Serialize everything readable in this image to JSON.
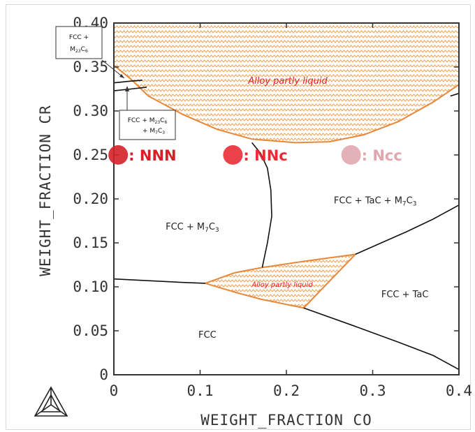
{
  "chart_data": {
    "type": "phase-diagram",
    "xlabel": "WEIGHT_FRACTION CO",
    "ylabel": "WEIGHT_FRACTION CR",
    "xlim": [
      0,
      0.4
    ],
    "ylim": [
      0,
      0.4
    ],
    "x_ticks": [
      "0",
      "0.1",
      "0.2",
      "0.3",
      "0.4"
    ],
    "y_ticks": [
      "0",
      "0.05",
      "0.10",
      "0.15",
      "0.20",
      "0.25",
      "0.30",
      "0.35",
      "0.40"
    ],
    "boundaries": [
      {
        "name": "fcc-fcc-m7c3",
        "points": [
          [
            0.0,
            0.109
          ],
          [
            0.04,
            0.107
          ],
          [
            0.08,
            0.105
          ],
          [
            0.106,
            0.104
          ]
        ]
      },
      {
        "name": "fcc-fcc-tac",
        "points": [
          [
            0.22,
            0.076
          ],
          [
            0.28,
            0.055
          ],
          [
            0.33,
            0.037
          ],
          [
            0.37,
            0.022
          ],
          [
            0.4,
            0.006
          ]
        ]
      },
      {
        "name": "fcc-tac-upper",
        "points": [
          [
            0.28,
            0.137
          ],
          [
            0.31,
            0.15
          ],
          [
            0.34,
            0.163
          ],
          [
            0.37,
            0.177
          ],
          [
            0.4,
            0.193
          ]
        ]
      },
      {
        "name": "m7c3-tac-vertical",
        "points": [
          [
            0.172,
            0.122
          ],
          [
            0.178,
            0.15
          ],
          [
            0.183,
            0.18
          ],
          [
            0.182,
            0.21
          ],
          [
            0.178,
            0.235
          ],
          [
            0.17,
            0.252
          ],
          [
            0.16,
            0.264
          ]
        ]
      },
      {
        "name": "m23c6-line-1",
        "points": [
          [
            0.0,
            0.332
          ],
          [
            0.02,
            0.334
          ],
          [
            0.033,
            0.335
          ]
        ]
      },
      {
        "name": "m23c6-line-2",
        "points": [
          [
            0.0,
            0.323
          ],
          [
            0.02,
            0.325
          ],
          [
            0.038,
            0.327
          ]
        ]
      },
      {
        "name": "right-edge-line",
        "points": [
          [
            0.39,
            0.317
          ],
          [
            0.4,
            0.32
          ]
        ]
      }
    ],
    "liquid_regions": [
      {
        "label": "Alloy partly liquid",
        "points": [
          [
            0.0,
            0.4
          ],
          [
            0.4,
            0.4
          ],
          [
            0.4,
            0.33
          ],
          [
            0.37,
            0.31
          ],
          [
            0.33,
            0.288
          ],
          [
            0.29,
            0.273
          ],
          [
            0.25,
            0.265
          ],
          [
            0.21,
            0.264
          ],
          [
            0.16,
            0.268
          ],
          [
            0.12,
            0.279
          ],
          [
            0.08,
            0.296
          ],
          [
            0.04,
            0.317
          ],
          [
            0.02,
            0.336
          ],
          [
            0.0,
            0.352
          ]
        ]
      },
      {
        "label": "Alloy partly liquid",
        "points": [
          [
            0.106,
            0.104
          ],
          [
            0.14,
            0.116
          ],
          [
            0.172,
            0.122
          ],
          [
            0.22,
            0.129
          ],
          [
            0.28,
            0.137
          ],
          [
            0.22,
            0.076
          ],
          [
            0.17,
            0.086
          ],
          [
            0.14,
            0.094
          ]
        ]
      }
    ],
    "phase_labels": [
      {
        "text": "FCC + M",
        "sub": "7",
        "text2": "C",
        "sub2": "3",
        "x": 0.06,
        "y": 0.165
      },
      {
        "text": "FCC + TaC + M",
        "sub": "7",
        "text2": "C",
        "sub2": "3",
        "x": 0.255,
        "y": 0.195
      },
      {
        "text": "FCC + TaC",
        "sub": "",
        "text2": "",
        "sub2": "",
        "x": 0.31,
        "y": 0.088
      },
      {
        "text": "FCC",
        "sub": "",
        "text2": "",
        "sub2": "",
        "x": 0.098,
        "y": 0.042
      }
    ],
    "markers": [
      {
        "label": ": NNN",
        "x": 0.005,
        "y": 0.25,
        "color": "#d42128",
        "opacity": 0.9
      },
      {
        "label": ": NNc",
        "x": 0.138,
        "y": 0.25,
        "color": "#e8212a",
        "opacity": 0.85
      },
      {
        "label": ": Ncc",
        "x": 0.275,
        "y": 0.25,
        "color": "#d9909a",
        "opacity": 0.7
      }
    ],
    "callouts": [
      {
        "line1": "FCC +",
        "line2a": "M",
        "line2sub": "23",
        "line2b": "C",
        "line2sub2": "6",
        "line3a": "",
        "line3sub": "",
        "line3b": "",
        "line3sub2": ""
      },
      {
        "line1": "FCC + M",
        "line1sub": "23",
        "line1b": "C",
        "line1sub2": "6",
        "line2a": "+ M",
        "line2sub": "7",
        "line2b": "C",
        "line2sub2": "3"
      }
    ]
  },
  "colors": {
    "liquid_fill_stroke": "#f0a050",
    "liquid_border": "#e8873a",
    "liquid_label": "#e8212a",
    "axis": "#333333",
    "boundary": "#111111"
  },
  "logo": "thermo-calc-triangle-logo"
}
